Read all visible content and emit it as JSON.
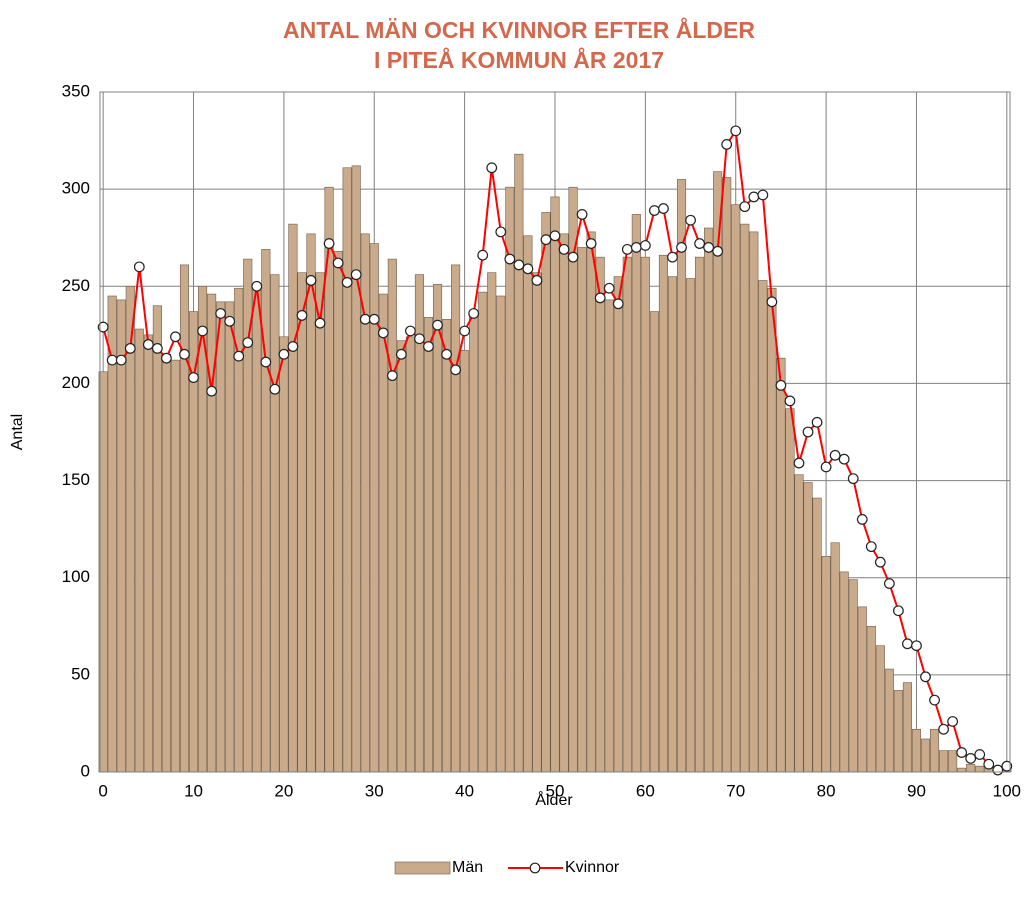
{
  "chart_data": {
    "type": "bar",
    "title": [
      "ANTAL MÄN OCH KVINNOR EFTER ÅLDER",
      "I PITEÅ KOMMUN ÅR 2017"
    ],
    "x_label": "Ålder",
    "y_label": "Antal",
    "x": [
      0,
      1,
      2,
      3,
      4,
      5,
      6,
      7,
      8,
      9,
      10,
      11,
      12,
      13,
      14,
      15,
      16,
      17,
      18,
      19,
      20,
      21,
      22,
      23,
      24,
      25,
      26,
      27,
      28,
      29,
      30,
      31,
      32,
      33,
      34,
      35,
      36,
      37,
      38,
      39,
      40,
      41,
      42,
      43,
      44,
      45,
      46,
      47,
      48,
      49,
      50,
      51,
      52,
      53,
      54,
      55,
      56,
      57,
      58,
      59,
      60,
      61,
      62,
      63,
      64,
      65,
      66,
      67,
      68,
      69,
      70,
      71,
      72,
      73,
      74,
      75,
      76,
      77,
      78,
      79,
      80,
      81,
      82,
      83,
      84,
      85,
      86,
      87,
      88,
      89,
      90,
      91,
      92,
      93,
      94,
      95,
      96,
      97,
      98,
      99,
      100
    ],
    "series": [
      {
        "name": "Män",
        "type": "bar",
        "color": "#c9ab8c",
        "values": [
          206,
          245,
          243,
          250,
          228,
          225,
          240,
          215,
          212,
          261,
          237,
          250,
          246,
          242,
          242,
          249,
          264,
          248,
          269,
          256,
          224,
          282,
          257,
          277,
          257,
          301,
          268,
          311,
          312,
          277,
          272,
          246,
          264,
          222,
          224,
          256,
          234,
          251,
          233,
          261,
          217,
          236,
          247,
          257,
          245,
          301,
          318,
          276,
          257,
          288,
          296,
          277,
          301,
          270,
          278,
          265,
          243,
          255,
          265,
          287,
          265,
          237,
          266,
          255,
          305,
          254,
          265,
          280,
          309,
          306,
          292,
          282,
          278,
          253,
          249,
          213,
          187,
          153,
          149,
          141,
          111,
          118,
          103,
          99,
          85,
          75,
          65,
          53,
          42,
          46,
          22,
          17,
          22,
          11,
          11,
          2,
          4,
          3,
          2,
          1,
          3
        ]
      },
      {
        "name": "Kvinnor",
        "type": "line",
        "color": "#ff0000",
        "values": [
          229,
          212,
          212,
          218,
          260,
          220,
          218,
          213,
          224,
          215,
          203,
          227,
          196,
          236,
          232,
          214,
          221,
          250,
          211,
          197,
          215,
          219,
          235,
          253,
          231,
          272,
          262,
          252,
          256,
          233,
          233,
          226,
          204,
          215,
          227,
          223,
          219,
          230,
          215,
          207,
          227,
          236,
          266,
          311,
          278,
          264,
          261,
          259,
          253,
          274,
          276,
          269,
          265,
          287,
          272,
          244,
          249,
          241,
          269,
          270,
          271,
          289,
          290,
          265,
          270,
          284,
          272,
          270,
          268,
          323,
          330,
          291,
          296,
          297,
          242,
          199,
          191,
          159,
          175,
          180,
          157,
          163,
          161,
          151,
          130,
          116,
          108,
          97,
          83,
          66,
          65,
          49,
          37,
          22,
          26,
          10,
          7,
          9,
          4,
          1,
          3
        ]
      }
    ],
    "xlim": [
      -0.35,
      100.35
    ],
    "xticks": [
      0,
      10,
      20,
      30,
      40,
      50,
      60,
      70,
      80,
      90,
      100
    ],
    "ylim": [
      0,
      350
    ],
    "yticks": [
      0,
      50,
      100,
      150,
      200,
      250,
      300,
      350
    ],
    "grid": true,
    "legend": "bottom"
  }
}
